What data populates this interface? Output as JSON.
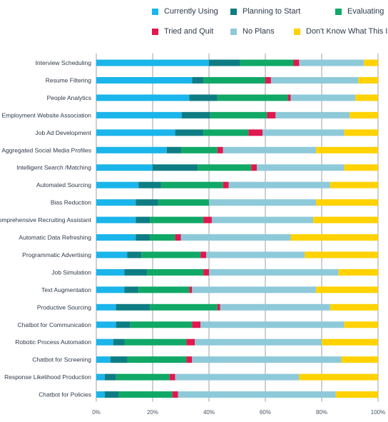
{
  "chart_data": {
    "type": "bar",
    "orientation": "horizontal",
    "stacked": "percent",
    "legend_position": "top",
    "categories": [
      "Interview Scheduling",
      "Resume Filtering",
      "People Analytics",
      "Employment Website Association",
      "Job Ad Development",
      "Aggregated Social Media Profiles",
      "Intelligent Search /Matching",
      "Automated Sourcing",
      "Bias Reduction",
      "Comprehensive Recruiting Assistant",
      "Automatic Data Refreshing",
      "Programmatic Advertising",
      "Job Simulation",
      "Text Augmentation",
      "Productive Sourcing",
      "Chatbot for Communication",
      "Robotic Process Automation",
      "Chatbot for Screening",
      "Response Likelihood Production",
      "Chatbot for Policies"
    ],
    "series": [
      {
        "name": "Currently Using",
        "color": "#1ab5ea",
        "values": [
          40,
          34,
          33,
          30,
          28,
          25,
          20,
          15,
          14,
          14,
          14,
          11,
          10,
          10,
          7,
          7,
          6,
          5,
          3,
          3
        ]
      },
      {
        "name": "Planning to Start",
        "color": "#0e7d83",
        "values": [
          11,
          4,
          10,
          10,
          10,
          5,
          16,
          8,
          8,
          5,
          5,
          5,
          8,
          5,
          12,
          5,
          4,
          6,
          4,
          5
        ]
      },
      {
        "name": "Evaluating",
        "color": "#10a866",
        "values": [
          19,
          22,
          25,
          20,
          16,
          13,
          19,
          22,
          18,
          19,
          9,
          21,
          20,
          18,
          24,
          22,
          22,
          21,
          19,
          19
        ]
      },
      {
        "name": "Tried and Quit",
        "color": "#e0184f",
        "values": [
          2,
          2,
          1,
          3,
          5,
          2,
          2,
          2,
          0,
          3,
          2,
          2,
          2,
          1,
          1,
          3,
          3,
          2,
          2,
          2
        ]
      },
      {
        "name": "No Plans",
        "color": "#8ec9d9",
        "values": [
          23,
          31,
          23,
          26,
          29,
          33,
          31,
          36,
          38,
          36,
          39,
          35,
          46,
          44,
          39,
          51,
          45,
          53,
          44,
          56
        ]
      },
      {
        "name": "Don't Know What This Is",
        "color": "#ffd200",
        "values": [
          5,
          7,
          8,
          10,
          12,
          22,
          12,
          17,
          22,
          23,
          31,
          26,
          14,
          22,
          17,
          12,
          20,
          13,
          28,
          15
        ]
      }
    ],
    "xlim": [
      0,
      100
    ],
    "x_ticks": [
      "0%",
      "20%",
      "40%",
      "60%",
      "80%",
      "100%"
    ],
    "grid": "vertical",
    "title": "",
    "xlabel": "",
    "ylabel": ""
  }
}
